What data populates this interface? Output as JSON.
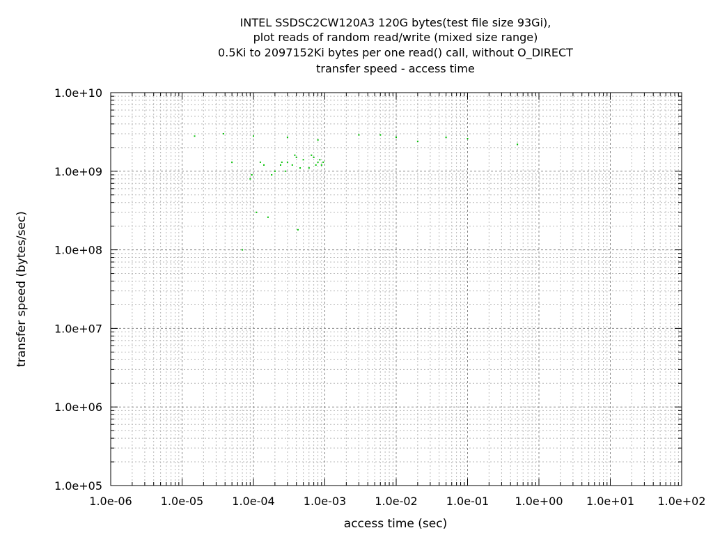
{
  "chart_data": {
    "type": "scatter",
    "title_lines": [
      "INTEL SSDSC2CW120A3 120G bytes(test file size 93Gi),",
      "plot reads of random read/write (mixed size range)",
      "0.5Ki to 2097152Ki bytes per one read() call, without O_DIRECT",
      "transfer speed - access time"
    ],
    "xlabel": "access time (sec)",
    "ylabel": "transfer speed (bytes/sec)",
    "x_scale": "log",
    "y_scale": "log",
    "xlim": [
      1e-06,
      100
    ],
    "ylim": [
      100000,
      10000000000
    ],
    "x_ticks": [
      {
        "value": 1e-06,
        "label": "1.0e-06"
      },
      {
        "value": 1e-05,
        "label": "1.0e-05"
      },
      {
        "value": 0.0001,
        "label": "1.0e-04"
      },
      {
        "value": 0.001,
        "label": "1.0e-03"
      },
      {
        "value": 0.01,
        "label": "1.0e-02"
      },
      {
        "value": 0.1,
        "label": "1.0e-01"
      },
      {
        "value": 1,
        "label": "1.0e+00"
      },
      {
        "value": 10,
        "label": "1.0e+01"
      },
      {
        "value": 100,
        "label": "1.0e+02"
      }
    ],
    "y_ticks": [
      {
        "value": 100000,
        "label": "1.0e+05"
      },
      {
        "value": 1000000,
        "label": "1.0e+06"
      },
      {
        "value": 10000000,
        "label": "1.0e+07"
      },
      {
        "value": 100000000,
        "label": "1.0e+08"
      },
      {
        "value": 1000000000,
        "label": "1.0e+09"
      },
      {
        "value": 10000000000,
        "label": "1.0e+10"
      }
    ],
    "grid": true,
    "point_color": "#00c000",
    "series": [
      {
        "points": [
          [
            5e-05,
            1300000000
          ],
          [
            7e-05,
            100000000
          ],
          [
            9e-05,
            800000000
          ],
          [
            9.5e-05,
            900000000
          ],
          [
            0.00011,
            300000000
          ],
          [
            0.000125,
            1300000000
          ],
          [
            0.00014,
            1200000000
          ],
          [
            0.00016,
            260000000
          ],
          [
            0.00018,
            900000000
          ],
          [
            0.0002,
            1000000000
          ],
          [
            0.00024,
            1200000000
          ],
          [
            0.0003,
            1300000000
          ],
          [
            0.00035,
            1200000000
          ],
          [
            0.0004,
            1500000000
          ],
          [
            0.00042,
            180000000
          ],
          [
            0.0005,
            1400000000
          ],
          [
            0.0006,
            1100000000
          ],
          [
            0.0007,
            1500000000
          ],
          [
            0.0008,
            1300000000
          ],
          [
            0.0009,
            1200000000
          ],
          [
            0.00025,
            1300000000
          ],
          [
            0.00045,
            1100000000
          ],
          [
            0.00065,
            1600000000
          ],
          [
            0.00075,
            1200000000
          ],
          [
            0.00085,
            1400000000
          ],
          [
            0.00095,
            1300000000
          ],
          [
            0.00028,
            1000000000
          ],
          [
            0.00038,
            1600000000
          ],
          [
            3.8e-05,
            3000000000
          ],
          [
            1.5e-05,
            2800000000
          ],
          [
            0.0001,
            2800000000
          ],
          [
            0.0003,
            2700000000
          ],
          [
            0.0008,
            2500000000
          ],
          [
            0.003,
            2900000000
          ],
          [
            0.006,
            2900000000
          ],
          [
            0.01,
            2700000000
          ],
          [
            0.02,
            2400000000
          ],
          [
            0.05,
            2700000000
          ],
          [
            0.1,
            2600000000
          ],
          [
            0.5,
            2200000000
          ]
        ]
      }
    ]
  }
}
